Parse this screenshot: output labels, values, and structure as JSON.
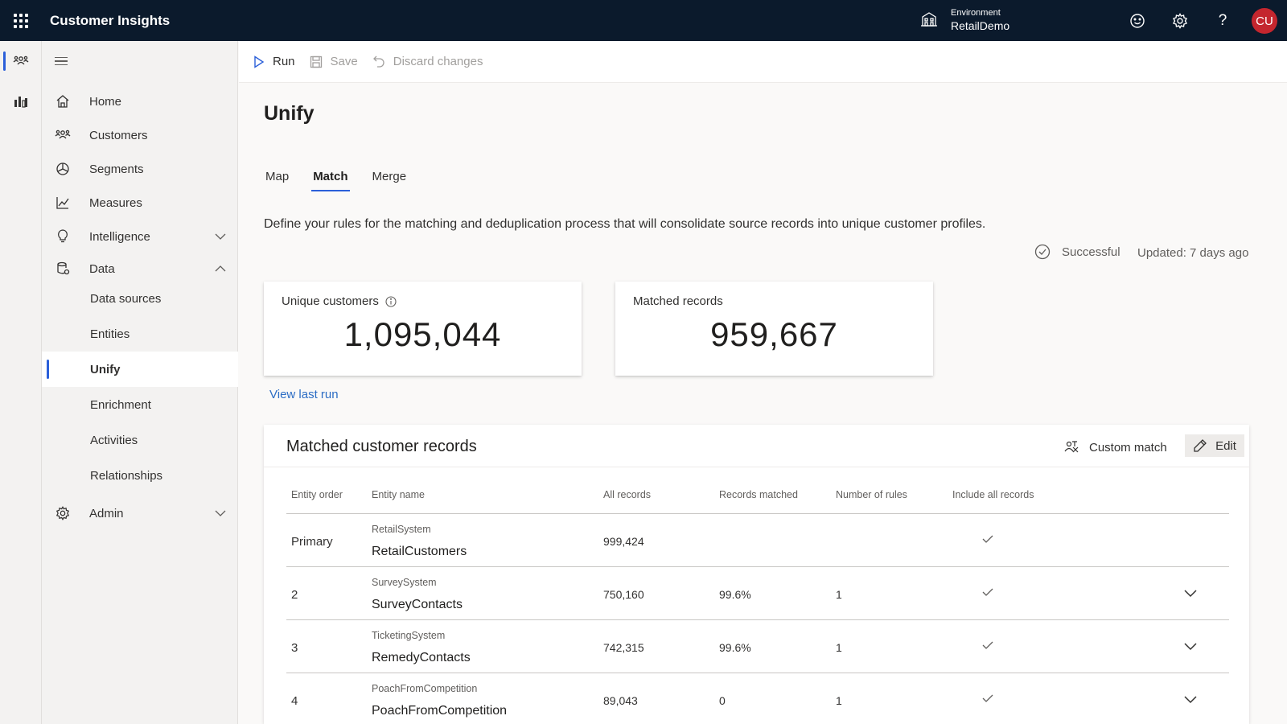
{
  "app": {
    "title": "Customer Insights",
    "environment_label": "Environment",
    "environment_value": "RetailDemo",
    "user_initials": "CU",
    "avatar_color": "#c4262e",
    "accent_color": "#2b5fd9",
    "topbar_color": "#0b1a2c"
  },
  "rail": {
    "items": [
      {
        "icon": "customers-icon",
        "active": true
      },
      {
        "icon": "analytics-icon",
        "active": false
      }
    ]
  },
  "sidebar": {
    "items": [
      {
        "label": "Home",
        "icon": "home-icon"
      },
      {
        "label": "Customers",
        "icon": "customers-icon"
      },
      {
        "label": "Segments",
        "icon": "segments-icon"
      },
      {
        "label": "Measures",
        "icon": "measures-icon"
      },
      {
        "label": "Intelligence",
        "icon": "lightbulb-icon",
        "expandable": true,
        "expanded": false
      },
      {
        "label": "Data",
        "icon": "data-icon",
        "expandable": true,
        "expanded": true
      },
      {
        "label": "Admin",
        "icon": "gear-icon",
        "expandable": true,
        "expanded": false
      }
    ],
    "data_children": [
      {
        "label": "Data sources"
      },
      {
        "label": "Entities"
      },
      {
        "label": "Unify",
        "active": true
      },
      {
        "label": "Enrichment"
      },
      {
        "label": "Activities"
      },
      {
        "label": "Relationships"
      }
    ]
  },
  "commands": {
    "run": "Run",
    "save": "Save",
    "discard": "Discard changes"
  },
  "page": {
    "title": "Unify",
    "tabs": [
      {
        "label": "Map",
        "active": false
      },
      {
        "label": "Match",
        "active": true
      },
      {
        "label": "Merge",
        "active": false
      }
    ],
    "description": "Define your rules for the matching and deduplication process that will consolidate source records into unique customer profiles.",
    "status": "Successful",
    "updated": "Updated: 7 days ago",
    "view_last_run": "View last run"
  },
  "cards": [
    {
      "label": "Unique customers",
      "value": "1,095,044",
      "has_info": true
    },
    {
      "label": "Matched records",
      "value": "959,667",
      "has_info": false
    }
  ],
  "table": {
    "title": "Matched customer records",
    "custom_match": "Custom match",
    "edit": "Edit",
    "columns": [
      "Entity order",
      "Entity name",
      "All records",
      "Records matched",
      "Number of rules",
      "Include all records"
    ],
    "rows": [
      {
        "order": "Primary",
        "source": "RetailSystem",
        "name": "RetailCustomers",
        "all": "999,424",
        "matched": "",
        "rules": "",
        "include_all": true,
        "expandable": false
      },
      {
        "order": "2",
        "source": "SurveySystem",
        "name": "SurveyContacts",
        "all": "750,160",
        "matched": "99.6%",
        "rules": "1",
        "include_all": true,
        "expandable": true
      },
      {
        "order": "3",
        "source": "TicketingSystem",
        "name": "RemedyContacts",
        "all": "742,315",
        "matched": "99.6%",
        "rules": "1",
        "include_all": true,
        "expandable": true
      },
      {
        "order": "4",
        "source": "PoachFromCompetition",
        "name": "PoachFromCompetition",
        "all": "89,043",
        "matched": "0",
        "rules": "1",
        "include_all": true,
        "expandable": true
      }
    ]
  }
}
